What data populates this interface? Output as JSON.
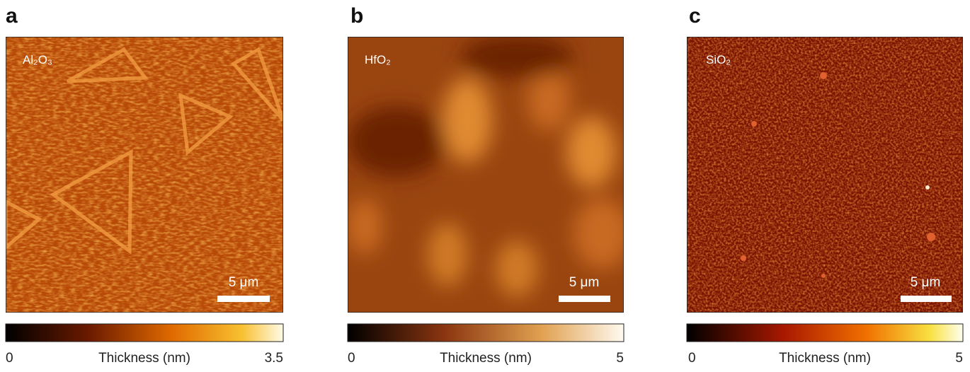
{
  "panels": [
    {
      "letter": "a",
      "material": "Al₂O₃",
      "scale_bar": "5 μm",
      "colorbar": {
        "min": "0",
        "label": "Thickness (nm)",
        "max": "3.5"
      }
    },
    {
      "letter": "b",
      "material": "HfO₂",
      "scale_bar": "5 μm",
      "colorbar": {
        "min": "0",
        "label": "Thickness (nm)",
        "max": "5"
      }
    },
    {
      "letter": "c",
      "material": "SiO₂",
      "scale_bar": "5 μm",
      "colorbar": {
        "min": "0",
        "label": "Thickness (nm)",
        "max": "5"
      }
    }
  ]
}
